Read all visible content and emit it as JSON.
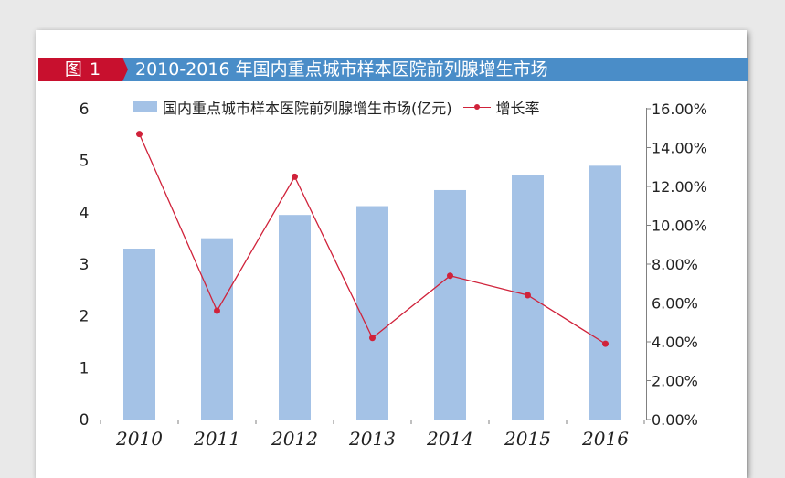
{
  "header": {
    "figure_tag": "图 1",
    "title": "2010-2016 年国内重点城市样本医院前列腺增生市场"
  },
  "colors": {
    "bar": "#a4c2e6",
    "line": "#d0223a",
    "title_bar": "#4a8dc8",
    "figure_tag": "#c8102e"
  },
  "chart_data": {
    "type": "bar",
    "categories": [
      "2010",
      "2011",
      "2012",
      "2013",
      "2014",
      "2015",
      "2016"
    ],
    "series": [
      {
        "name": "国内重点城市样本医院前列腺增生市场(亿元)",
        "type": "bar",
        "axis": "left",
        "values": [
          3.3,
          3.5,
          3.95,
          4.12,
          4.43,
          4.72,
          4.9
        ]
      },
      {
        "name": "增长率",
        "type": "line",
        "axis": "right",
        "values": [
          14.7,
          5.6,
          12.5,
          4.2,
          7.4,
          6.4,
          3.9
        ]
      }
    ],
    "y_left": {
      "lim": [
        0,
        6
      ],
      "ticks": [
        "0",
        "1",
        "2",
        "3",
        "4",
        "5",
        "6"
      ]
    },
    "y_right": {
      "lim": [
        0,
        16
      ],
      "ticks": [
        "0.00%",
        "2.00%",
        "4.00%",
        "6.00%",
        "8.00%",
        "10.00%",
        "12.00%",
        "14.00%",
        "16.00%"
      ]
    },
    "grid": false,
    "legend": "top"
  }
}
